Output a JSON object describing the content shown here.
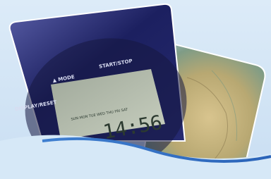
{
  "photo_texts": {
    "mode": "▲ MODE",
    "start_stop": "START/STOP",
    "display_reset": "DISPLAY/RESET",
    "weekdays": "SUN MON TUE WED THU FRI SAT",
    "time": "14:56"
  }
}
